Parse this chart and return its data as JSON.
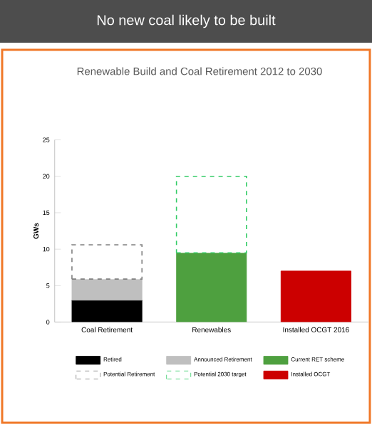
{
  "chart_data": {
    "type": "bar",
    "title": "No new coal likely to be built",
    "subtitle": "Renewable Build and Coal Retirement 2012 to 2030",
    "ylabel": "GWs",
    "categories": [
      "Coal Retirement",
      "Renewables",
      "Installed OCGT 2016"
    ],
    "stacked": true,
    "ylim": [
      0,
      25
    ],
    "yticks": [
      0,
      5,
      10,
      15,
      20,
      25
    ],
    "legend": "bottom",
    "series": [
      {
        "name": "Retired",
        "color": "#000000",
        "values": [
          3.0,
          null,
          null
        ]
      },
      {
        "name": "Announced Retirement",
        "color": "#bfbfbf",
        "values": [
          2.9,
          null,
          null
        ]
      },
      {
        "name": "Current RET scheme",
        "color": "#4ea03f",
        "values": [
          null,
          9.5,
          null
        ]
      },
      {
        "name": "Potential Retirement",
        "color": "#808080",
        "line_style": "dashed",
        "values": [
          4.7,
          null,
          null
        ]
      },
      {
        "name": "Potential 2030 target",
        "color": "#33cc66",
        "line_style": "dashed",
        "values": [
          null,
          10.5,
          null
        ]
      },
      {
        "name": "Installed OCGT",
        "color": "#cc0000",
        "values": [
          null,
          null,
          7.0
        ]
      }
    ]
  }
}
